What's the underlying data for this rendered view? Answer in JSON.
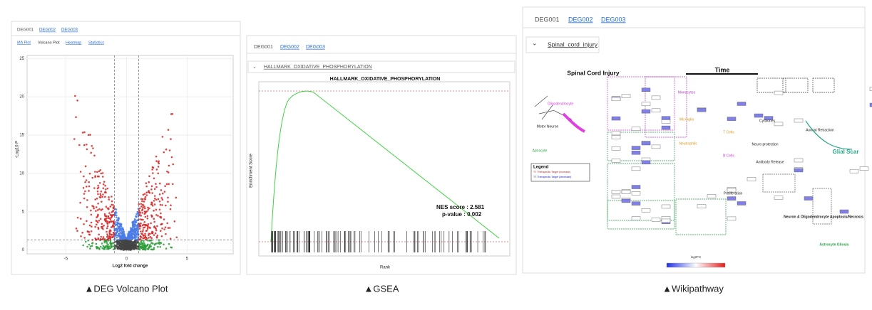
{
  "panels": [
    {
      "tabs": [
        "DEG001",
        "DEG002",
        "DEG003"
      ],
      "subtabs": [
        "MA Plot",
        "Volcano Plot",
        "Heatmap",
        "Statistics"
      ],
      "plot": {
        "xlabel": "Log2 fold change",
        "ylabel": "-Log10 P",
        "xlim": [
          -8.2,
          8.8
        ],
        "ylim": [
          -0.5,
          25.4
        ],
        "xticks": [
          -5,
          0,
          5
        ],
        "yticks": [
          0,
          5,
          10,
          15,
          20,
          25
        ]
      },
      "caption": "▲DEG Volcano Plot"
    },
    {
      "tabs": [
        "DEG001",
        "DEG002",
        "DEG003"
      ],
      "dropdown": "HALLMARK_OXIDATIVE_PHOSPHORYLATION",
      "plot": {
        "title": "HALLMARK_OXIDATIVE_PHOSPHORYLATION",
        "ylabel": "Enrichment Score",
        "xlabel": "Rank",
        "nes": "NES score : 2.581",
        "pvalue": "p-value : 0.002"
      },
      "caption": "▲GSEA"
    },
    {
      "tabs": [
        "DEG001",
        "DEG002",
        "DEG003"
      ],
      "dropdown": "Spinal_cord_injury",
      "pathway": {
        "title": "Spinal Cord Injury",
        "time": "Time",
        "legend": "Legend",
        "legend_items": [
          "TT Therapeutic Target (increase)",
          "TT Therapeutic Target (decrease)"
        ],
        "labels": [
          "Motor Neuron",
          "Oligodendrocyte",
          "Astrocyte",
          "Monocytes",
          "Microglia",
          "T Cells",
          "B Cells",
          "Neutrophils",
          "Neuro protection",
          "Proliferation",
          "Axonal Retraction",
          "Glial Scar",
          "Neuron & Oligodendrocyte Apoptosis/Necrosis",
          "Astrocyte Gliosis",
          "Antibody Release",
          "Cytokines"
        ],
        "scale": "log2FC"
      },
      "caption": "▲Wikipathway"
    }
  ]
}
